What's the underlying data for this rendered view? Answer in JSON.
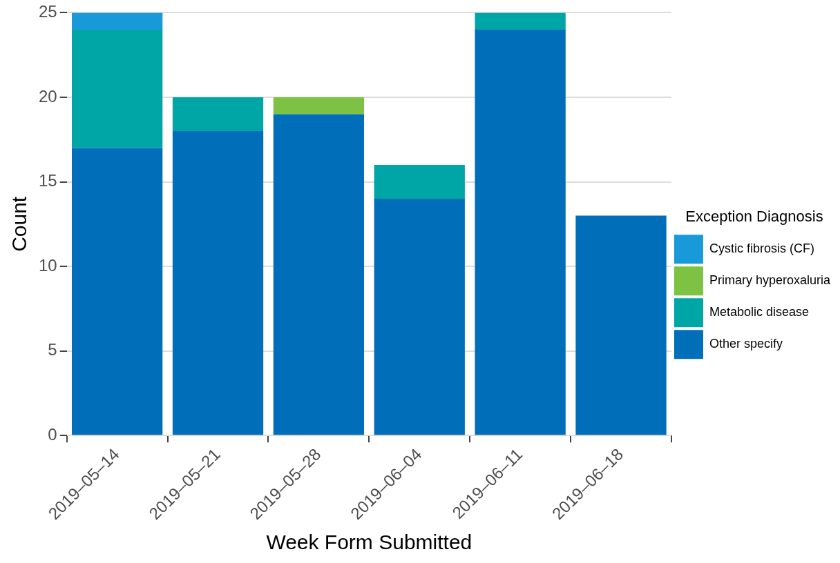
{
  "chart_data": {
    "type": "bar",
    "xlabel": "Week Form Submitted",
    "ylabel": "Count",
    "legend_title": "Exception Diagnosis",
    "categories": [
      "2019–05–14",
      "2019–05–21",
      "2019–05–28",
      "2019–06–04",
      "2019–06–11",
      "2019–06–18"
    ],
    "series": [
      {
        "name": "Other specify",
        "color": "#006eb8",
        "values": [
          17,
          18,
          19,
          14,
          24,
          13
        ]
      },
      {
        "name": "Metabolic disease",
        "color": "#00a6a6",
        "values": [
          7,
          2,
          0,
          2,
          1,
          0
        ]
      },
      {
        "name": "Primary hyperoxaluria",
        "color": "#7dc242",
        "values": [
          0,
          0,
          1,
          0,
          0,
          0
        ]
      },
      {
        "name": "Cystic fibrosis (CF)",
        "color": "#199ad8",
        "values": [
          1,
          0,
          0,
          0,
          0,
          0
        ]
      }
    ],
    "stacked": true,
    "ylim": [
      0,
      25
    ],
    "yticks": [
      0,
      5,
      10,
      15,
      20,
      25
    ],
    "grid": "y",
    "legend": "right"
  }
}
